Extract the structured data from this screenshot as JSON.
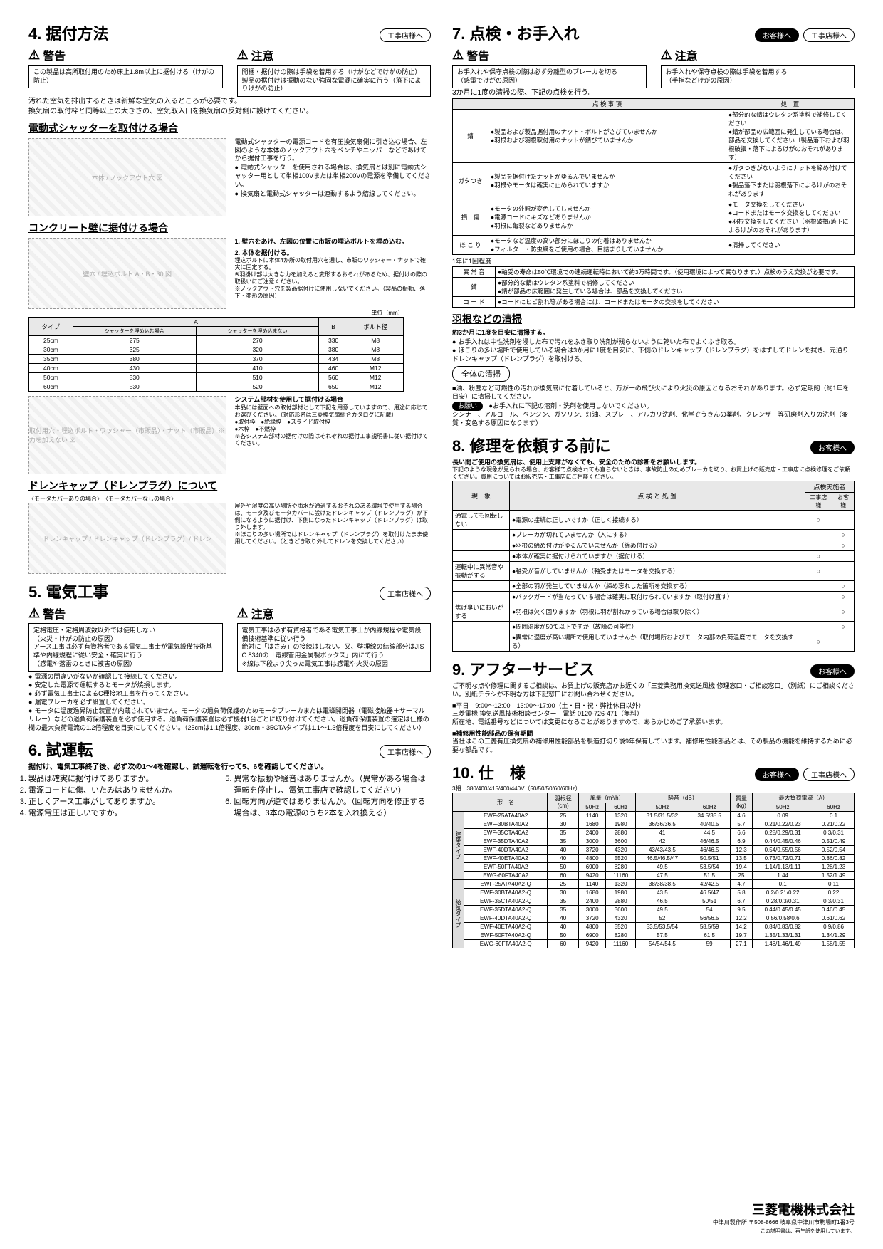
{
  "left": {
    "s4": {
      "title": "4. 据付方法",
      "badge": "工事店様へ",
      "warn": {
        "keikoku": "警告",
        "keikoku_body": "この製品は高所取付用のため床上1.8m以上に据付ける（けがの防止）",
        "chui": "注意",
        "chui_body": "開梱・据付けの際は手袋を着用する（けがなどでけがの防止）\n製品の据付けは振動のない強固な電源に確実に行う（落下によりけがの防止）"
      },
      "intro1": "汚れた空気を排出するときは新鮮な空気の入るところが必要です。",
      "intro2": "換気扇の取付枠と同等以上の大きさの、空気取入口を換気扇の反対側に設けてください。",
      "h_shutter": "電動式シャッターを取付ける場合",
      "shutter_text": "電動式シャッターの電源コードを有圧換気扇側に引き込む場合、左図のような本体のノックアウト穴をベンチやニッパーなどであけてから据付工事を行う。",
      "shutter_bullets": [
        "電動式シャッターを使用される場合は、換気扇とは別に電動式シャッター用として単相100Vまたは単相200Vの電源を準備してください。",
        "換気扇と電動式シャッターは連動するよう結線してください。"
      ],
      "diagram_knockout": "本体 / ノックアウト穴 図",
      "h_concrete": "コンクリート壁に据付ける場合",
      "conc_step1": "1. 壁穴をあけ、左図の位置に市販の埋込ボルトを埋め込む。",
      "conc_step2": "2. 本体を据付ける。",
      "conc_step2_body": "埋込ボルトに本体4か所の取付用穴を通し、市販のワッシャー・ナットで確実に固定する。\n※羽掛け部は大きな力を加えると変形するおそれがあるため、据付けの際の取扱いにご注意ください。\n※ノックアウト穴を製品据付けに使用しないでください。（製品の振動、落下・変形の原因）",
      "dim_unit": "単位（mm）",
      "dim_table": {
        "headers": [
          "タイプ",
          "シャッターを埋め込む場合",
          "シャッターを埋め込まない",
          "B",
          "ボルト径"
        ],
        "rows": [
          [
            "25cm",
            "275",
            "270",
            "330",
            "M8"
          ],
          [
            "30cm",
            "325",
            "320",
            "380",
            "M8"
          ],
          [
            "35cm",
            "380",
            "370",
            "434",
            "M8"
          ],
          [
            "40cm",
            "430",
            "410",
            "460",
            "M12"
          ],
          [
            "50cm",
            "530",
            "510",
            "560",
            "M12"
          ],
          [
            "60cm",
            "530",
            "520",
            "650",
            "M12"
          ]
        ]
      },
      "diagram_wall": "壁穴 / 埋込ボルト A・B・30 図",
      "diagram_mount": "取付用穴・埋込ボルト・ワッシャー（市販品）・ナット（市販品）※力を加えない 図",
      "system_h": "システム部材を使用して据付ける場合",
      "system_body": "本品には壁面への取付部材として下記を用意していますので、用途に応じてお選びください。（対応形名は三菱換気扇総合カタログに記載）",
      "system_items": "●取付枠　●絶縁枠　●スライド取付枠\n●木枠　●不燃枠",
      "system_note": "※各システム部材の据付けの際はそれぞれの据付工事説明書に従い据付けてください。",
      "h_drain": "ドレンキャップ（ドレンプラグ）について",
      "drain_diag_caption": "〈モータカバーありの場合〉　〈モータカバーなしの場合〉",
      "drain_labels": "ドレンキャップ / ドレンキャップ（ドレンプラグ）/ ドレン",
      "drain_body": "屋外や湿度の高い場所や雨水が通過するおそれのある環境で使用する場合は、モータ及びモータカバーに設けたドレンキャップ（ドレンプラグ）が下側になるように据付け、下側になったドレンキャップ（ドレンプラグ）は取り外します。\n※ほこりの多い場所ではドレンキャップ（ドレンプラグ）を取付けたまま使用してください。（ときどき取り外してドレンを交換してください）"
    },
    "s5": {
      "title": "5. 電気工事",
      "badge": "工事店様へ",
      "warn": {
        "keikoku": "警告",
        "keikoku_body": "定格電圧・定格周波数以外では使用しない\n（火災・けがの防止の原因）\nアース工事は必ず有資格者である電気工事士が電気設備技術基準や内線規程に従い安全・確実に行う\n（感電や落雷のときに被害の原因）",
        "chui": "注意",
        "chui_body": "電気工事は必ず有資格者である電気工事士が内線規程や電気設備技術基準に従い行う\n絶対に「はさみ」の接続はしない。又、壁埋線の結線部分はJIS C 8340の「電線管用金属製ボックス」内にて行う\n※線は下段より尖った電気工事は感電や火災の原因"
      },
      "bullets": [
        "電源の間違いがないか確認して接続してください。",
        "安定した電源で運転するとモータが焼損します。",
        "必ず電気工事士によるC種接地工事を行ってください。",
        "漏電ブレーカを必ず設置してください。",
        "モータに温度過昇防止装置が内蔵されていません。モータの過負荷保護のためモータブレーカまたは電磁開閉器（電磁接触器＋サーマルリレー）などの過負荷保護装置を必ず使用する。過負荷保護装置は必ず機器1台ごとに取り付けてください。過負荷保護装置の選定は仕様の欄の最大負荷電流の1.2倍程度を目安にしてください。（25cmは1.1倍程度、30cm・35CTAタイプは1.1〜1.3倍程度を目安にしてください）"
      ]
    },
    "s6": {
      "title": "6. 試運転",
      "badge": "工事店様へ",
      "intro": "据付け、電気工事終了後、必ず次の1〜4を確認し、試運転を行って5、6を確認してください。",
      "items_l": [
        "製品は確実に据付けてありますか。",
        "電源コードに傷、いたみはありませんか。",
        "正しくアース工事がしてありますか。",
        "電源電圧は正しいですか。"
      ],
      "items_r": [
        "異常な振動や騒音はありませんか。（異常がある場合は運転を停止し、電気工事店で確認してください）",
        "回転方向が逆ではありませんか。（回転方向を修正する場合は、3本の電源のうち2本を入れ換える）"
      ]
    }
  },
  "right": {
    "s7": {
      "title": "7. 点検・お手入れ",
      "badges": [
        "お客様へ",
        "工事店様へ"
      ],
      "warn": {
        "keikoku": "警告",
        "keikoku_body": "お手入れや保守点検の際は必ず分離型のブレーカを切る\n（感電でけがの原因）",
        "chui": "注意",
        "chui_body": "お手入れや保守点検の際は手袋を着用する\n（手指などけがの原因）"
      },
      "intro": "3か月に1度の清掃の際、下記の点検を行う。",
      "inspect_table": {
        "headers": [
          "点 検 事 項",
          "処　置"
        ],
        "rows": [
          [
            "錆",
            "●製品および製品据付用のナット・ボルトがさびていませんか\n●羽根および羽根取付用のナットが錆びていませんか",
            "●部分的な錆はウレタン系塗料で補修してください\n●錆が部品の広範囲に発生している場合は、部品を交換してください（製品落下および羽根破損・落下によるけがのおそれがあります）"
          ],
          [
            "ガタつき",
            "●製品を据付けたナットがゆるんでいませんか\n●羽根やモータは確実に止められていますか",
            "●ガタつきがないようにナットを締め付けてください\n●製品落下または羽根落下によるけがのおそれがあります"
          ],
          [
            "損　傷",
            "●モータの外観が変色してしませんか\n●電源コードにキズなどありませんか\n●羽根に亀裂などありませんか",
            "●モータ交換をしてください\n●コードまたはモータ交換をしてください\n●羽根交換をしてください（羽根破損/落下によるけがのおそれがあります）"
          ],
          [
            "ほ こ り",
            "●モータなど温度の高い部分にほこりの付着はありませんか\n●フィルター・防虫網をご使用の場合、目詰まりしていませんか",
            "●清掃してください"
          ]
        ]
      },
      "annual_h": "1年に1回程度",
      "annual_table": {
        "rows": [
          [
            "異 常 音",
            "●軸受の寿命は50℃環境での連続運転時において約3万時間です。（使用環境によって異なります。）点検のうえ交換が必要です。"
          ],
          [
            "錆",
            "●部分的な錆はウレタン系塗料で補修してください\n●錆が部品の広範囲に発生している場合は、部品を交換してください"
          ],
          [
            "コ ー ド",
            "●コードにヒビ割れ等がある場合には、コードまたはモータの交換をしてください"
          ]
        ]
      },
      "h_blade": "羽根などの清掃",
      "blade_intro": "約3か月に1度を目安に清掃する。",
      "blade_bullets": [
        "お手入れは中性洗剤を浸した布で汚れをふき取り洗剤が残らないように乾いた布でよくふき取る。",
        "ほこりの多い場所で使用している場合は3か月に1度を目安に、下側のドレンキャップ（ドレンプラグ）をはずしてドレンを拭き、元通りドレンキャップ（ドレンプラグ）を取付ける。"
      ],
      "h_all": "全体の清掃",
      "all_body": "■油、粉塵など可燃性の汚れが換気扇に付着していると、万が一の飛び火により火災の原因となるおそれがあります。必ず定期的（約1年を目安）に清掃してください。",
      "onegai": "お願い",
      "onegai_body": "●お手入れに下記の溶剤・洗剤を使用しないでください。\nシンナー、アルコール、ベンジン、ガソリン、灯油、スプレー、アルカリ洗剤、化学ぞうきんの薬剤、クレンザー等研磨剤入りの洗剤（変質・変色する原因になります）"
    },
    "s8": {
      "title": "8. 修理を依頼する前に",
      "badge": "お客様へ",
      "intro1": "長い間ご使用の換気扇は、使用上支障がなくても、安全のための診断をお願いします。",
      "intro2": "下記のような現象が見られる場合、お客様で点検されても直らないときは、事故防止のためブレーカを切り、お買上げの販売店・工事店に点検修理をご依頼ください。費用についてはお販売店・工事店にご相談ください。",
      "table": {
        "headers": [
          "現　象",
          "点 検 と 処 置",
          "工事店様",
          "お客様"
        ],
        "rows": [
          [
            "通電しても回転しない",
            "●電源の接続は正しいですか（正しく接続する）",
            "○",
            ""
          ],
          [
            "",
            "●ブレーカが切れていませんか（入にする）",
            "",
            "○"
          ],
          [
            "",
            "●羽根の締め付けがゆるんでいませんか（締め付ける）",
            "",
            "○"
          ],
          [
            "",
            "●本体が確実に据付けられていますか（据付ける）",
            "○",
            ""
          ],
          [
            "運転中に異常音や振動がする",
            "●軸受が音がしていませんか（軸受またはモータを交換する）",
            "○",
            ""
          ],
          [
            "",
            "●全部の羽が発生していませんか（締め忘れした箇所を交換する）",
            "",
            "○"
          ],
          [
            "",
            "●バックガードが当たっている場合は確実に取付けられていますか（取付け直す）",
            "",
            "○"
          ],
          [
            "焦げ臭いにおいがする",
            "●羽根は欠く回りますか（羽根に羽が割れかっている場合は取り除く）",
            "",
            "○"
          ],
          [
            "",
            "●周囲温度が50℃以下ですか（故障の可能性）",
            "",
            "○"
          ],
          [
            "",
            "●異常に湿度が高い場所で使用していませんか（取付場所およびモータ内部の負荷温度でモータを交換する）",
            "○",
            ""
          ]
        ]
      }
    },
    "s9": {
      "title": "9. アフターサービス",
      "badge": "お客様へ",
      "body1": "ご不明な点や修理に関するご相談は、お買上げの販売店かお近くの「三菱業務用換気送風機 修理窓口・ご相談窓口」（別紙）にご相談ください。別紙チラシが不明な方は下記窓口にお問い合わせください。",
      "hours": "■平日　9:00〜12:00　13:00〜17:00（土・日・祝・弊社休日以外）\n三菱電機 換気送風技術相談センター　電話 0120-726-471（無料）\n所在地、電話番号などについては変更になることがありますので、あらかじめご了承願います。",
      "h_parts": "■補修用性能部品の保有期間",
      "parts_body": "当社はこの三菱有圧換気扇の補修用性能部品を製造打切り後9年保有しています。補修用性能部品とは、その製品の機能を維持するために必要な部品です。"
    },
    "s10": {
      "title": "10. 仕　様",
      "badges": [
        "お客様へ",
        "工事店様へ"
      ],
      "power": "3相　380/400/415/400/440V（50/50/50/60/60Hz）",
      "headers": [
        "",
        "形　名",
        "羽根径(cm)",
        "風量(m³/h) 50Hz",
        "風量 60Hz",
        "騒音(dB) 50Hz",
        "騒音 60Hz",
        "質量(kg)",
        "最大負荷電流(A) 50Hz",
        "最大負荷電流 60Hz"
      ],
      "group1": "建築タイプ",
      "group2": "給気タイプ",
      "rows1": [
        [
          "EWF-25ATA40A2",
          "25",
          "1140",
          "1320",
          "31.5/31.5/32",
          "34.5/35.5",
          "4.6",
          "0.09",
          "0.1"
        ],
        [
          "EWF-30BTA40A2",
          "30",
          "1680",
          "1980",
          "36/36/36.5",
          "40/40.5",
          "5.7",
          "0.21/0.22/0.23",
          "0.21/0.22"
        ],
        [
          "EWF-35CTA40A2",
          "35",
          "2400",
          "2880",
          "41",
          "44.5",
          "6.6",
          "0.28/0.29/0.31",
          "0.3/0.31"
        ],
        [
          "EWF-35DTA40A2",
          "35",
          "3000",
          "3600",
          "42",
          "46/46.5",
          "6.9",
          "0.44/0.45/0.46",
          "0.51/0.49"
        ],
        [
          "EWF-40DTA40A2",
          "40",
          "3720",
          "4320",
          "43/43/43.5",
          "46/46.5",
          "12.3",
          "0.54/0.55/0.56",
          "0.52/0.54"
        ],
        [
          "EWF-40ETA40A2",
          "40",
          "4800",
          "5520",
          "46.5/46.5/47",
          "50.5/51",
          "13.5",
          "0.73/0.72/0.71",
          "0.86/0.82"
        ],
        [
          "EWF-50FTA40A2",
          "50",
          "6900",
          "8280",
          "49.5",
          "53.5/54",
          "19.4",
          "1.14/1.13/1.11",
          "1.28/1.23"
        ],
        [
          "EWG-60FTA40A2",
          "60",
          "9420",
          "11160",
          "47.5",
          "51.5",
          "25",
          "1.44",
          "1.52/1.49"
        ]
      ],
      "rows2": [
        [
          "EWF-25ATA40A2-Q",
          "25",
          "1140",
          "1320",
          "38/38/38.5",
          "42/42.5",
          "4.7",
          "0.1",
          "0.11"
        ],
        [
          "EWF-30BTA40A2-Q",
          "30",
          "1680",
          "1980",
          "43.5",
          "46.5/47",
          "5.8",
          "0.2/0.21/0.22",
          "0.22"
        ],
        [
          "EWF-35CTA40A2-Q",
          "35",
          "2400",
          "2880",
          "46.5",
          "50/51",
          "6.7",
          "0.28/0.3/0.31",
          "0.3/0.31"
        ],
        [
          "EWF-35DTA40A2-Q",
          "35",
          "3000",
          "3600",
          "49.5",
          "54",
          "9.5",
          "0.44/0.45/0.45",
          "0.46/0.45"
        ],
        [
          "EWF-40DTA40A2-Q",
          "40",
          "3720",
          "4320",
          "52",
          "56/56.5",
          "12.2",
          "0.56/0.58/0.6",
          "0.61/0.62"
        ],
        [
          "EWF-40ETA40A2-Q",
          "40",
          "4800",
          "5520",
          "53.5/53.5/54",
          "58.5/59",
          "14.2",
          "0.84/0.83/0.82",
          "0.9/0.86"
        ],
        [
          "EWF-50FTA40A2-Q",
          "50",
          "6900",
          "8280",
          "57.5",
          "61.5",
          "19.7",
          "1.35/1.33/1.31",
          "1.34/1.29"
        ],
        [
          "EWG-60FTA40A2-Q",
          "60",
          "9420",
          "11160",
          "54/54/54.5",
          "59",
          "27.1",
          "1.48/1.46/1.49",
          "1.58/1.55"
        ]
      ]
    },
    "footer": {
      "company": "三菱電機株式会社",
      "addr": "中津川製作所 〒508-8666 岐阜県中津川市駒場町1番3号",
      "note": "この説明書は、再生紙を使用しています。"
    }
  }
}
